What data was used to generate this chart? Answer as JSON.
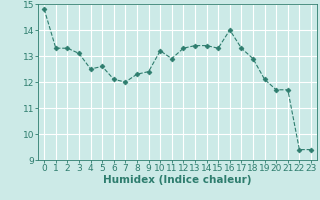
{
  "x": [
    0,
    1,
    2,
    3,
    4,
    5,
    6,
    7,
    8,
    9,
    10,
    11,
    12,
    13,
    14,
    15,
    16,
    17,
    18,
    19,
    20,
    21,
    22,
    23
  ],
  "y": [
    14.8,
    13.3,
    13.3,
    13.1,
    12.5,
    12.6,
    12.1,
    12.0,
    12.3,
    12.4,
    13.2,
    12.9,
    13.3,
    13.4,
    13.4,
    13.3,
    14.0,
    13.3,
    12.9,
    12.1,
    11.7,
    11.7,
    9.4,
    9.4
  ],
  "line_color": "#2e7d6e",
  "marker": "D",
  "marker_size": 2.5,
  "bg_color": "#cceae7",
  "grid_color": "#ffffff",
  "xlabel": "Humidex (Indice chaleur)",
  "xlim": [
    -0.5,
    23.5
  ],
  "ylim": [
    9,
    15
  ],
  "yticks": [
    9,
    10,
    11,
    12,
    13,
    14,
    15
  ],
  "xticks": [
    0,
    1,
    2,
    3,
    4,
    5,
    6,
    7,
    8,
    9,
    10,
    11,
    12,
    13,
    14,
    15,
    16,
    17,
    18,
    19,
    20,
    21,
    22,
    23
  ],
  "xlabel_fontsize": 7.5,
  "tick_fontsize": 6.5
}
